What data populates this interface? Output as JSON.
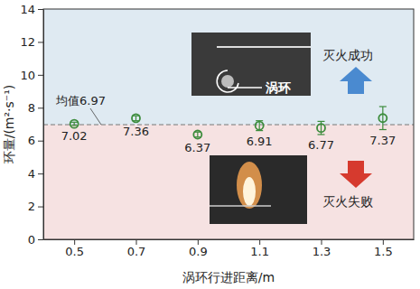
{
  "chart_data": {
    "type": "scatter",
    "x_label": "涡环行进距离/m",
    "y_label": "环量/(m²·s⁻¹)",
    "x": [
      0.5,
      0.7,
      0.9,
      1.1,
      1.3,
      1.5
    ],
    "values": [
      7.02,
      7.36,
      6.37,
      6.91,
      6.77,
      7.37
    ],
    "errors": [
      0.1,
      0.15,
      0.15,
      0.3,
      0.4,
      0.7
    ],
    "color": "#3c8c3c",
    "marker": "circle",
    "data_labels": true,
    "xlim": [
      0.4,
      1.6
    ],
    "xticks": [
      0.5,
      0.7,
      0.9,
      1.1,
      1.3,
      1.5
    ],
    "ylim": [
      0,
      14
    ],
    "yticks": [
      0,
      2,
      4,
      6,
      8,
      10,
      12,
      14
    ],
    "grid": false,
    "reference_line": {
      "value": 6.97,
      "label": "均值6.97"
    },
    "annotations": [
      "灭火成功",
      "灭火失败",
      "涡环"
    ]
  }
}
